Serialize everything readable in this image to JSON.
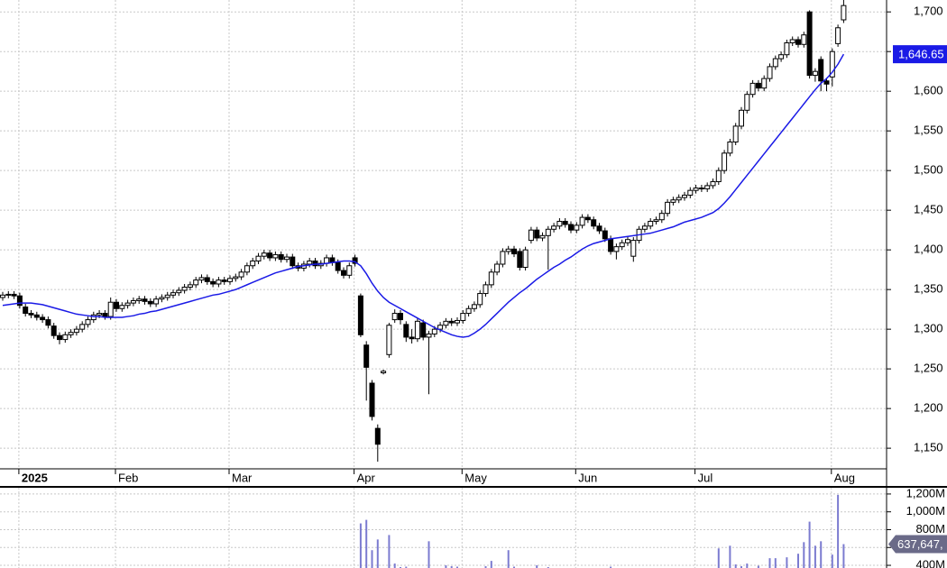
{
  "chart_data": {
    "type": "candlestick",
    "categories": [
      null,
      null,
      null,
      "2025",
      null,
      null,
      null,
      null,
      null,
      null,
      null,
      null,
      null,
      null,
      null,
      null,
      null,
      null,
      null,
      null,
      "Feb",
      null,
      null,
      null,
      null,
      null,
      null,
      null,
      null,
      null,
      null,
      null,
      null,
      null,
      null,
      null,
      null,
      null,
      null,
      null,
      "Mar",
      null,
      null,
      null,
      null,
      null,
      null,
      null,
      null,
      null,
      null,
      null,
      null,
      null,
      null,
      null,
      null,
      null,
      null,
      null,
      null,
      null,
      "Apr",
      null,
      null,
      null,
      null,
      null,
      null,
      null,
      null,
      null,
      null,
      null,
      null,
      null,
      null,
      null,
      null,
      null,
      null,
      "May",
      null,
      null,
      null,
      null,
      null,
      null,
      null,
      null,
      null,
      null,
      null,
      null,
      null,
      null,
      null,
      null,
      null,
      null,
      null,
      "Jun",
      null,
      null,
      null,
      null,
      null,
      null,
      null,
      null,
      null,
      null,
      null,
      null,
      null,
      null,
      null,
      null,
      null,
      null,
      null,
      null,
      "Jul",
      null,
      null,
      null,
      null,
      null,
      null,
      null,
      null,
      null,
      null,
      null,
      null,
      null,
      null,
      null,
      null,
      null,
      null,
      null,
      null,
      null,
      null,
      null,
      "Aug",
      null,
      null
    ],
    "open": [
      1340,
      1343,
      1344,
      1342,
      1328,
      1320,
      1318,
      1315,
      1312,
      1304,
      1292,
      1287,
      1293,
      1296,
      1300,
      1306,
      1312,
      1318,
      1320,
      1316,
      1334,
      1326,
      1330,
      1333,
      1336,
      1338,
      1335,
      1332,
      1338,
      1340,
      1343,
      1346,
      1349,
      1353,
      1356,
      1362,
      1365,
      1360,
      1357,
      1362,
      1360,
      1364,
      1366,
      1372,
      1380,
      1386,
      1392,
      1396,
      1390,
      1394,
      1388,
      1391,
      1380,
      1377,
      1382,
      1386,
      1380,
      1383,
      1390,
      1384,
      1374,
      1368,
      1390,
      1342,
      1280,
      1232,
      1175,
      1245,
      1268,
      1312,
      1320,
      1306,
      1290,
      1288,
      1308,
      1290,
      1294,
      1300,
      1305,
      1310,
      1308,
      1311,
      1320,
      1326,
      1331,
      1345,
      1356,
      1372,
      1382,
      1398,
      1401,
      1398,
      1378,
      1412,
      1425,
      1415,
      1418,
      1426,
      1430,
      1436,
      1432,
      1425,
      1431,
      1441,
      1438,
      1430,
      1424,
      1414,
      1398,
      1404,
      1409,
      1392,
      1412,
      1426,
      1430,
      1436,
      1438,
      1446,
      1460,
      1463,
      1466,
      1469,
      1475,
      1478,
      1477,
      1481,
      1486,
      1500,
      1522,
      1536,
      1556,
      1576,
      1596,
      1610,
      1604,
      1616,
      1631,
      1641,
      1646,
      1661,
      1665,
      1659,
      1700,
      1620,
      1640,
      1613,
      1618,
      1660,
      1690
    ],
    "high": [
      1347,
      1348,
      1348,
      1346,
      1332,
      1324,
      1322,
      1319,
      1316,
      1308,
      1296,
      1297,
      1300,
      1304,
      1310,
      1316,
      1322,
      1324,
      1324,
      1340,
      1338,
      1334,
      1337,
      1340,
      1342,
      1342,
      1339,
      1342,
      1344,
      1347,
      1350,
      1353,
      1357,
      1360,
      1366,
      1369,
      1369,
      1364,
      1366,
      1366,
      1368,
      1370,
      1376,
      1384,
      1390,
      1396,
      1400,
      1400,
      1398,
      1398,
      1395,
      1395,
      1384,
      1386,
      1390,
      1390,
      1387,
      1394,
      1394,
      1388,
      1378,
      1384,
      1394,
      1345,
      1285,
      1236,
      1180,
      1249,
      1308,
      1325,
      1324,
      1310,
      1300,
      1314,
      1312,
      1298,
      1304,
      1309,
      1314,
      1314,
      1315,
      1324,
      1330,
      1335,
      1349,
      1360,
      1376,
      1386,
      1402,
      1405,
      1405,
      1402,
      1404,
      1429,
      1429,
      1422,
      1430,
      1434,
      1440,
      1440,
      1436,
      1435,
      1445,
      1445,
      1442,
      1434,
      1428,
      1418,
      1408,
      1413,
      1417,
      1416,
      1430,
      1434,
      1440,
      1442,
      1450,
      1464,
      1467,
      1470,
      1473,
      1479,
      1482,
      1482,
      1485,
      1490,
      1504,
      1526,
      1540,
      1560,
      1580,
      1600,
      1614,
      1614,
      1620,
      1635,
      1645,
      1650,
      1665,
      1669,
      1669,
      1675,
      1702,
      1629,
      1644,
      1617,
      1654,
      1684,
      1715
    ],
    "low": [
      1336,
      1339,
      1338,
      1326,
      1316,
      1314,
      1311,
      1308,
      1301,
      1288,
      1281,
      1283,
      1289,
      1292,
      1296,
      1302,
      1308,
      1314,
      1312,
      1312,
      1322,
      1322,
      1326,
      1329,
      1332,
      1331,
      1328,
      1328,
      1334,
      1336,
      1339,
      1342,
      1345,
      1349,
      1352,
      1358,
      1356,
      1353,
      1353,
      1356,
      1356,
      1360,
      1362,
      1368,
      1376,
      1382,
      1388,
      1386,
      1386,
      1384,
      1384,
      1376,
      1373,
      1373,
      1378,
      1376,
      1376,
      1379,
      1380,
      1370,
      1364,
      1364,
      1379,
      1290,
      1210,
      1185,
      1133,
      1243,
      1264,
      1308,
      1306,
      1284,
      1282,
      1284,
      1286,
      1218,
      1290,
      1296,
      1301,
      1304,
      1304,
      1307,
      1316,
      1322,
      1327,
      1341,
      1352,
      1368,
      1378,
      1394,
      1391,
      1374,
      1374,
      1408,
      1411,
      1411,
      1375,
      1422,
      1426,
      1428,
      1421,
      1421,
      1427,
      1434,
      1426,
      1420,
      1410,
      1394,
      1388,
      1400,
      1405,
      1385,
      1408,
      1422,
      1426,
      1432,
      1434,
      1442,
      1456,
      1459,
      1462,
      1465,
      1471,
      1473,
      1473,
      1477,
      1482,
      1496,
      1518,
      1532,
      1552,
      1572,
      1592,
      1600,
      1600,
      1612,
      1627,
      1637,
      1642,
      1657,
      1655,
      1655,
      1616,
      1612,
      1600,
      1600,
      1606,
      1656,
      1686
    ],
    "close": [
      1343,
      1344,
      1342,
      1330,
      1320,
      1318,
      1315,
      1312,
      1305,
      1292,
      1287,
      1293,
      1296,
      1300,
      1306,
      1312,
      1318,
      1320,
      1316,
      1334,
      1326,
      1330,
      1333,
      1336,
      1338,
      1335,
      1332,
      1338,
      1340,
      1343,
      1346,
      1349,
      1353,
      1356,
      1362,
      1365,
      1360,
      1357,
      1362,
      1360,
      1364,
      1366,
      1372,
      1380,
      1386,
      1392,
      1396,
      1390,
      1394,
      1388,
      1391,
      1380,
      1377,
      1382,
      1386,
      1380,
      1383,
      1390,
      1384,
      1374,
      1368,
      1380,
      1383,
      1293,
      1252,
      1190,
      1155,
      1247,
      1305,
      1320,
      1312,
      1290,
      1288,
      1310,
      1290,
      1294,
      1300,
      1305,
      1310,
      1308,
      1311,
      1320,
      1326,
      1331,
      1345,
      1356,
      1372,
      1382,
      1398,
      1401,
      1395,
      1378,
      1400,
      1425,
      1415,
      1418,
      1426,
      1430,
      1436,
      1432,
      1425,
      1431,
      1441,
      1438,
      1430,
      1424,
      1414,
      1398,
      1404,
      1409,
      1413,
      1412,
      1426,
      1430,
      1436,
      1438,
      1446,
      1460,
      1463,
      1466,
      1469,
      1475,
      1478,
      1477,
      1481,
      1486,
      1500,
      1522,
      1536,
      1556,
      1576,
      1596,
      1610,
      1604,
      1616,
      1631,
      1641,
      1646,
      1661,
      1665,
      1659,
      1671,
      1620,
      1625,
      1613,
      1609,
      1650,
      1680,
      1708
    ],
    "up_color": "#ffffff",
    "down_color": "#000000",
    "ylim": [
      1124,
      1715
    ],
    "yticks": [
      {
        "value": 1150,
        "label": "1,150"
      },
      {
        "value": 1200,
        "label": "1,200"
      },
      {
        "value": 1250,
        "label": "1,250"
      },
      {
        "value": 1300,
        "label": "1,300"
      },
      {
        "value": 1350,
        "label": "1,350"
      },
      {
        "value": 1400,
        "label": "1,400"
      },
      {
        "value": 1450,
        "label": "1,450"
      },
      {
        "value": 1500,
        "label": "1,500"
      },
      {
        "value": 1550,
        "label": "1,550"
      },
      {
        "value": 1600,
        "label": "1,600"
      },
      {
        "value": 1650,
        "label": "1,650"
      },
      {
        "value": 1700,
        "label": "1,700"
      }
    ],
    "grid": true,
    "moving_average": {
      "color": "#1a1ae6",
      "label": "1,646.65",
      "values": [
        1330,
        1331,
        1332,
        1333,
        1333,
        1333,
        1332,
        1331,
        1329,
        1327,
        1325,
        1323,
        1321,
        1319,
        1318,
        1317,
        1316,
        1316,
        1315,
        1315,
        1315,
        1315,
        1316,
        1317,
        1319,
        1320,
        1322,
        1323,
        1325,
        1327,
        1329,
        1331,
        1333,
        1335,
        1337,
        1339,
        1341,
        1343,
        1344,
        1346,
        1348,
        1350,
        1353,
        1356,
        1359,
        1362,
        1365,
        1368,
        1371,
        1373,
        1375,
        1377,
        1379,
        1380,
        1381,
        1382,
        1382,
        1383,
        1384,
        1385,
        1386,
        1386,
        1385,
        1380,
        1370,
        1358,
        1348,
        1340,
        1334,
        1330,
        1326,
        1322,
        1318,
        1314,
        1310,
        1306,
        1302,
        1299,
        1296,
        1293,
        1291,
        1290,
        1291,
        1295,
        1300,
        1306,
        1313,
        1320,
        1327,
        1334,
        1340,
        1346,
        1351,
        1357,
        1363,
        1368,
        1373,
        1378,
        1382,
        1387,
        1391,
        1396,
        1401,
        1405,
        1408,
        1410,
        1412,
        1414,
        1415,
        1416,
        1417,
        1418,
        1419,
        1420,
        1421,
        1423,
        1425,
        1427,
        1429,
        1432,
        1435,
        1437,
        1439,
        1441,
        1444,
        1447,
        1452,
        1459,
        1467,
        1476,
        1485,
        1494,
        1503,
        1512,
        1521,
        1530,
        1539,
        1548,
        1557,
        1566,
        1575,
        1584,
        1593,
        1602,
        1610,
        1616,
        1624,
        1634,
        1646.65
      ]
    },
    "volume": {
      "color": "#7b7bd0",
      "label": "637,647,",
      "ylim": [
        370,
        1270
      ],
      "yticks": [
        {
          "value": 400,
          "label": "400M"
        },
        {
          "value": 600,
          "label": "600M"
        },
        {
          "value": 800,
          "label": "800M"
        },
        {
          "value": 1000,
          "label": "1,000M"
        },
        {
          "value": 1200,
          "label": "1,200M"
        }
      ],
      "values": [
        300,
        300,
        300,
        300,
        300,
        300,
        300,
        300,
        300,
        300,
        300,
        300,
        300,
        300,
        300,
        300,
        300,
        300,
        300,
        300,
        300,
        300,
        300,
        300,
        300,
        300,
        300,
        300,
        300,
        300,
        300,
        300,
        300,
        300,
        300,
        300,
        300,
        300,
        300,
        300,
        300,
        300,
        300,
        300,
        300,
        300,
        300,
        300,
        300,
        300,
        300,
        300,
        300,
        300,
        300,
        300,
        300,
        300,
        300,
        300,
        300,
        300,
        300,
        870,
        910,
        570,
        690,
        300,
        740,
        420,
        380,
        385,
        300,
        300,
        300,
        670,
        300,
        300,
        400,
        390,
        385,
        300,
        300,
        300,
        300,
        390,
        450,
        300,
        300,
        570,
        385,
        300,
        300,
        300,
        400,
        300,
        380,
        300,
        300,
        300,
        300,
        300,
        300,
        300,
        300,
        300,
        300,
        385,
        300,
        300,
        300,
        300,
        300,
        300,
        300,
        300,
        300,
        300,
        300,
        300,
        300,
        300,
        300,
        300,
        300,
        300,
        590,
        300,
        620,
        410,
        390,
        420,
        300,
        395,
        300,
        480,
        480,
        300,
        490,
        300,
        530,
        660,
        890,
        620,
        670,
        300,
        520,
        1190,
        637.647
      ]
    }
  }
}
